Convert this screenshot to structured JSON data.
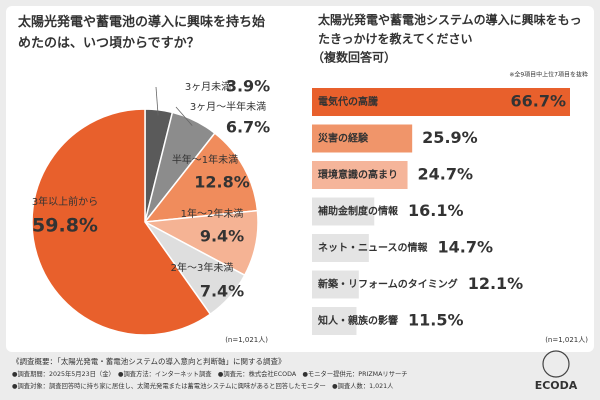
{
  "chart_data": [
    {
      "type": "pie",
      "title": "太陽光発電や蓄電池の導入に興味を持ち始めたのは、いつ頃からですか？",
      "categories": [
        "3ヶ月未満",
        "3ヶ月〜半年未満",
        "半年〜1年未満",
        "1年〜2年未満",
        "2年〜3年未満",
        "3年以上前から"
      ],
      "values": [
        3.9,
        6.7,
        12.8,
        9.4,
        7.4,
        59.8
      ],
      "value_labels": [
        "3.9%",
        "6.7%",
        "12.8%",
        "9.4%",
        "7.4%",
        "59.8%"
      ],
      "colors": [
        "#5a5a5a",
        "#8c8c8c",
        "#f08c5c",
        "#f5b394",
        "#dedede",
        "#e8602c"
      ],
      "note": "(n=1,021人)"
    },
    {
      "type": "hbar",
      "title": "太陽光発電や蓄電池システムの導入に興味をもったきっかけを教えてください",
      "subtitle": "（複数回答可）",
      "annotation": "※全9項目中上位7項目を抜粋",
      "categories": [
        "電気代の高騰",
        "災害の経験",
        "環境意識の高まり",
        "補助金制度の情報",
        "ネット・ニュースの情報",
        "新築・リフォームのタイミング",
        "知人・親族の影響"
      ],
      "values": [
        66.7,
        25.9,
        24.7,
        16.1,
        14.7,
        12.1,
        11.5
      ],
      "value_labels": [
        "66.7%",
        "25.9%",
        "24.7%",
        "16.1%",
        "14.7%",
        "12.1%",
        "11.5%"
      ],
      "colors": [
        "#e8602c",
        "#f0956a",
        "#f5b59a",
        "#e4e4e4",
        "#e4e4e4",
        "#e4e4e4",
        "#e4e4e4"
      ],
      "note": "(n=1,021人)"
    }
  ],
  "footer": {
    "lines": [
      "《調査概要：「太陽光発電・蓄電池システムの導入意向と判断軸」に関する調査》",
      "●調査期間：2025年5月23日（金）　●調査方法：インターネット調査　●調査元：株式会社ECODA　●モニター提供元：PRIZMAリサーチ",
      "●調査対象：調査回答時に持ち家に居住し、太陽光発電または蓄電池システムに興味があると回答したモニター　●調査人数：1,021人"
    ]
  },
  "logo": "ECODA"
}
